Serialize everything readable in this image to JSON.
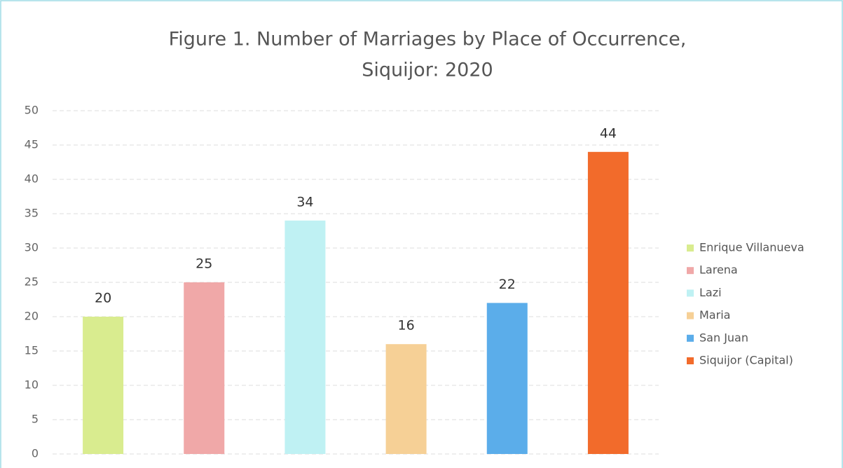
{
  "chart_data": {
    "type": "bar",
    "title": [
      "Figure 1. Number of Marriages by Place of Occurrence,",
      "Siquijor:  2020"
    ],
    "categories": [
      "Enrique Villanueva",
      "Larena",
      "Lazi",
      "Maria",
      "San Juan",
      "Siquijor (Capital)"
    ],
    "values": [
      20,
      25,
      34,
      16,
      22,
      44
    ],
    "colors": [
      "#d9ec8f",
      "#f0a8a8",
      "#bff1f3",
      "#f6d096",
      "#5badea",
      "#f26b2b"
    ],
    "ylim": [
      0,
      50
    ],
    "yticks": [
      0,
      5,
      10,
      15,
      20,
      25,
      30,
      35,
      40,
      45,
      50
    ],
    "grid": true,
    "legend": "right"
  }
}
